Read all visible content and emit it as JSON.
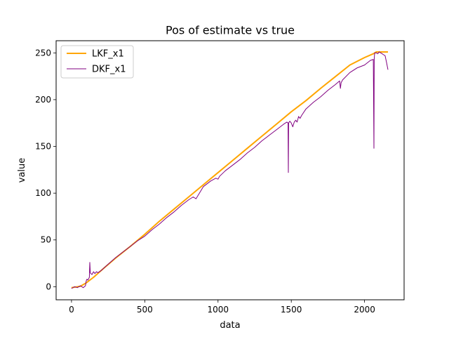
{
  "chart_data": {
    "type": "line",
    "title": "Pos of estimate vs true",
    "xlabel": "data",
    "ylabel": "value",
    "xlim": [
      -105,
      2270
    ],
    "ylim": [
      -14,
      263
    ],
    "xticks": [
      0,
      500,
      1000,
      1500,
      2000
    ],
    "yticks": [
      0,
      50,
      100,
      150,
      200,
      250
    ],
    "grid": false,
    "legend": "top-left",
    "series": [
      {
        "name": "LKF_x1",
        "color": "#ffa500",
        "linewidth": 2,
        "x": [
          0,
          60,
          100,
          150,
          200,
          300,
          400,
          500,
          600,
          700,
          800,
          900,
          1000,
          1100,
          1200,
          1300,
          1400,
          1500,
          1600,
          1700,
          1800,
          1900,
          2000,
          2060,
          2080,
          2100,
          2120,
          2160
        ],
        "y": [
          -1,
          0.5,
          4,
          10,
          17,
          30.5,
          43,
          56,
          70,
          83,
          96,
          109,
          122,
          135,
          148,
          161,
          174,
          187,
          199,
          212,
          224.5,
          237,
          245,
          249,
          251,
          251,
          251,
          251
        ]
      },
      {
        "name": "DKF_x1",
        "color": "#800080",
        "linewidth": 1,
        "x": [
          0,
          20,
          40,
          60,
          80,
          95,
          100,
          105,
          112,
          118,
          122,
          125,
          128,
          132,
          140,
          150,
          160,
          170,
          180,
          200,
          250,
          300,
          350,
          400,
          450,
          500,
          550,
          600,
          650,
          700,
          750,
          800,
          830,
          850,
          900,
          950,
          985,
          1000,
          1010,
          1050,
          1100,
          1150,
          1200,
          1250,
          1300,
          1350,
          1400,
          1450,
          1470,
          1478,
          1480,
          1482,
          1490,
          1500,
          1510,
          1520,
          1530,
          1540,
          1550,
          1560,
          1570,
          1600,
          1650,
          1700,
          1750,
          1800,
          1830,
          1835,
          1840,
          1850,
          1900,
          1950,
          2000,
          2040,
          2060,
          2064,
          2066,
          2068,
          2070,
          2080,
          2090,
          2100,
          2110,
          2120,
          2130,
          2140,
          2150,
          2160
        ],
        "y": [
          -2,
          0,
          -1,
          1,
          -1,
          1,
          6,
          8,
          7,
          9,
          10,
          26,
          15,
          14,
          13,
          16,
          14,
          16,
          15,
          17,
          24,
          31,
          37,
          43,
          49,
          54,
          61,
          67,
          74,
          80,
          87,
          93,
          96,
          94,
          107,
          113,
          116,
          115,
          118,
          124,
          130,
          136,
          143,
          149,
          156,
          162,
          168,
          174,
          176,
          175,
          122,
          175,
          177,
          175,
          171,
          176,
          178,
          176,
          182,
          180,
          183,
          190,
          197,
          203,
          210,
          216,
          220,
          212,
          218,
          221,
          229,
          234,
          237,
          242,
          243,
          148,
          243,
          248,
          250,
          250,
          249,
          251,
          250,
          249,
          248,
          247,
          240,
          232
        ]
      }
    ]
  }
}
